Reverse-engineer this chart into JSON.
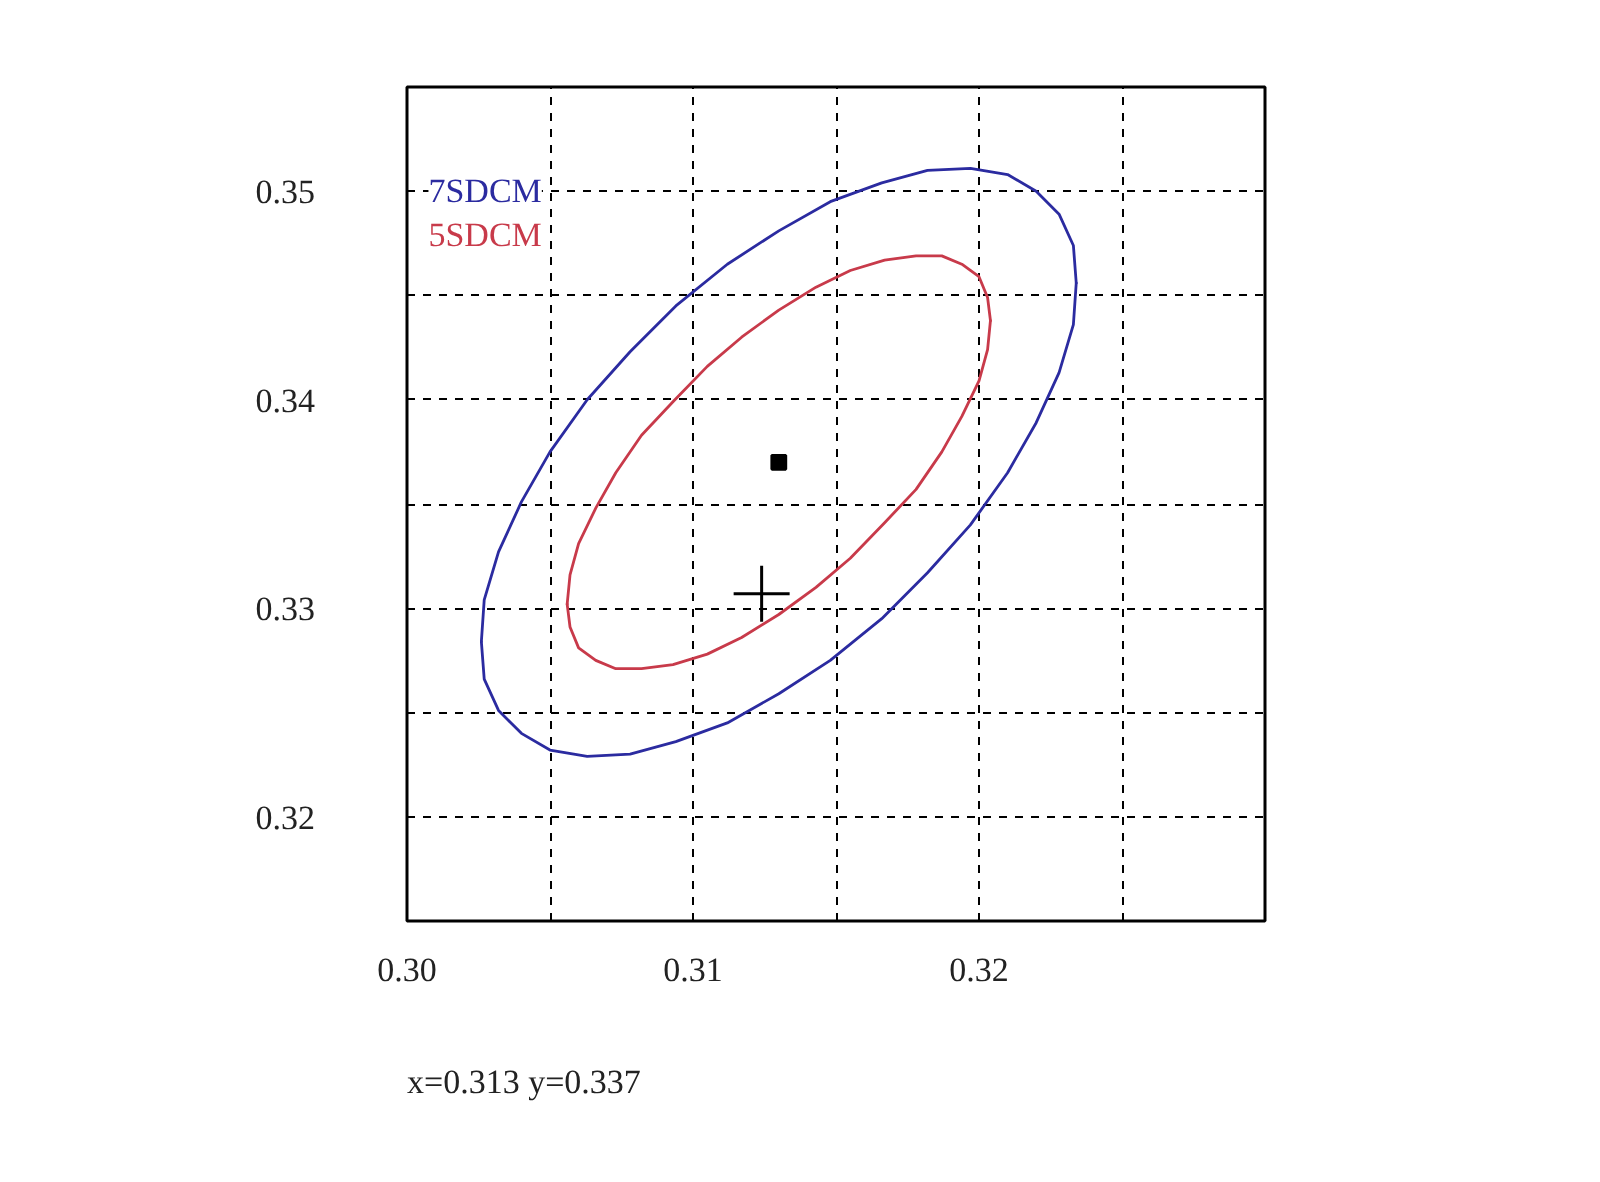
{
  "chart_data": {
    "type": "line",
    "xlim": [
      0.3,
      0.33
    ],
    "ylim": [
      0.315,
      0.355
    ],
    "xticks": [
      {
        "value": 0.3,
        "label": "0.30"
      },
      {
        "value": 0.305,
        "label": null
      },
      0.31,
      {
        "value": 0.315,
        "label": null
      },
      0.32,
      {
        "value": 0.325,
        "label": null
      }
    ],
    "yticks": [
      0.32,
      {
        "value": 0.325,
        "label": null
      },
      0.33,
      {
        "value": 0.335,
        "label": null
      },
      0.34,
      {
        "value": 0.345,
        "label": null
      },
      0.35
    ],
    "grid": true,
    "legend": "top left",
    "series": [
      {
        "name": "7SDCM",
        "color": "#2b2ba0",
        "type": "line",
        "x": [
          0.3026,
          0.3027,
          0.3032,
          0.304,
          0.305,
          0.3063,
          0.3078,
          0.3094,
          0.3112,
          0.313,
          0.3148,
          0.3166,
          0.3182,
          0.3197,
          0.321,
          0.322,
          0.3228,
          0.3233,
          0.3234
        ],
        "values": [
          0.3284,
          0.3304,
          0.3327,
          0.3351,
          0.3375,
          0.34,
          0.3423,
          0.3445,
          0.3465,
          0.3481,
          0.3495,
          0.3504,
          0.351,
          0.3511,
          0.3508,
          0.35,
          0.3489,
          0.3474,
          0.3456
        ]
      },
      {
        "color": "#2b2ba0",
        "type": "line",
        "x": [
          0.3026,
          0.3027,
          0.3032,
          0.304,
          0.305,
          0.3063,
          0.3078,
          0.3094,
          0.3112,
          0.313,
          0.3148,
          0.3166,
          0.3182,
          0.3197,
          0.321,
          0.322,
          0.3228,
          0.3233,
          0.3234
        ],
        "values": [
          0.3284,
          0.3266,
          0.3251,
          0.324,
          0.3232,
          0.3229,
          0.323,
          0.3236,
          0.3245,
          0.3259,
          0.3275,
          0.3295,
          0.3317,
          0.334,
          0.3365,
          0.3389,
          0.3413,
          0.3436,
          0.3456
        ]
      },
      {
        "name": "5SDCM",
        "color": "#c83a4a",
        "x": [
          0.3056,
          0.3057,
          0.306,
          0.3066,
          0.3073,
          0.3082,
          0.3093,
          0.3105,
          0.3117,
          0.313,
          0.3143,
          0.3155,
          0.3167,
          0.3178,
          0.3187,
          0.3194,
          0.32,
          0.3203,
          0.3204
        ],
        "values": [
          0.3302,
          0.3316,
          0.3331,
          0.3348,
          0.3365,
          0.3383,
          0.3399,
          0.3416,
          0.343,
          0.3443,
          0.3454,
          0.3462,
          0.3467,
          0.3469,
          0.3469,
          0.3465,
          0.3459,
          0.3449,
          0.3438
        ]
      },
      {
        "color": "#c83a4a",
        "x": [
          0.3056,
          0.3057,
          0.306,
          0.3066,
          0.3073,
          0.3082,
          0.3093,
          0.3105,
          0.3117,
          0.313,
          0.3143,
          0.3155,
          0.3167,
          0.3178,
          0.3187,
          0.3194,
          0.32,
          0.3203,
          0.3204
        ],
        "values": [
          0.3302,
          0.3291,
          0.3281,
          0.3275,
          0.3271,
          0.3271,
          0.3273,
          0.3278,
          0.3286,
          0.3297,
          0.331,
          0.3324,
          0.3341,
          0.3357,
          0.3375,
          0.3392,
          0.3409,
          0.3424,
          0.3438
        ]
      },
      {
        "color": "#000000",
        "type": "scatter",
        "marker": "square",
        "x": [
          0.313
        ],
        "values": [
          0.337
        ]
      },
      {
        "color": "#000000",
        "type": "scatter",
        "marker": "cross",
        "x": [
          0.3124
        ],
        "values": [
          0.3307
        ]
      }
    ],
    "annotations": [
      "x=0.313  y=0.337"
    ]
  }
}
